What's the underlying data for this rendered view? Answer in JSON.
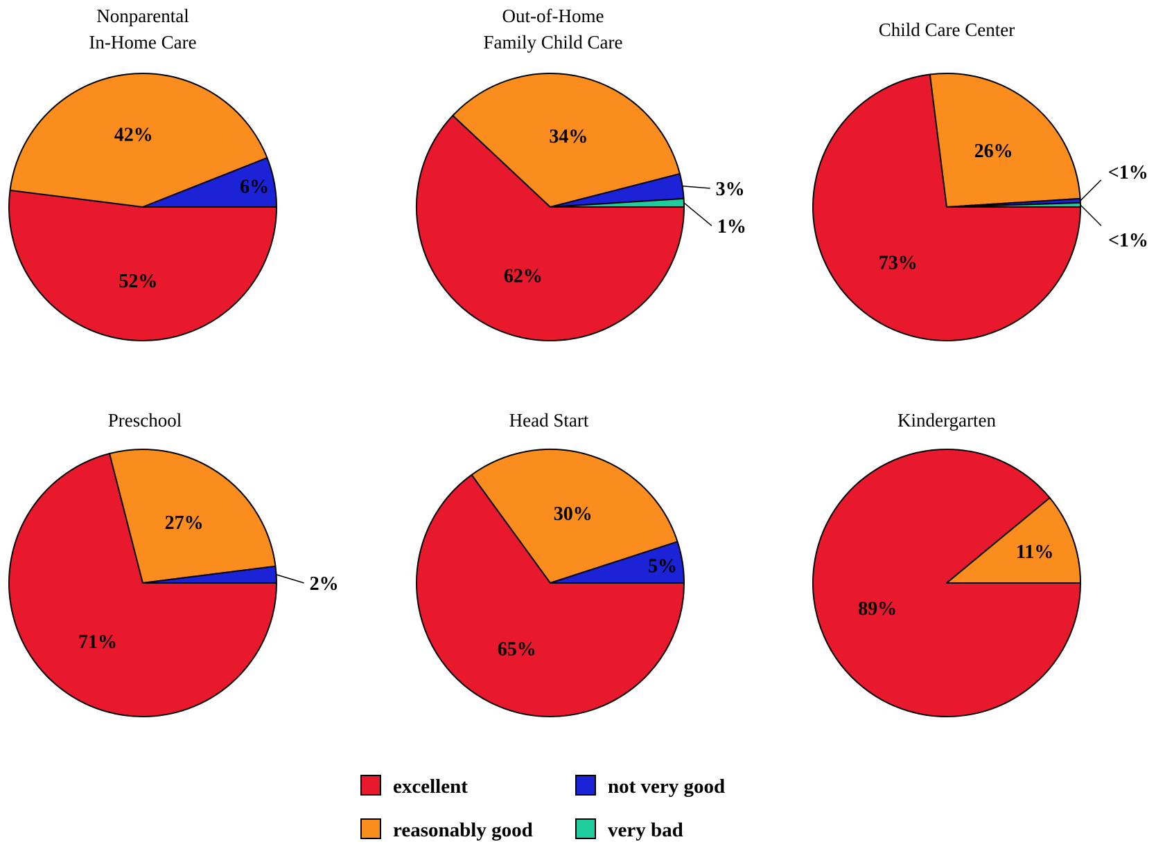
{
  "chart_data": [
    {
      "type": "pie",
      "title": [
        "Nonparental",
        "In-Home Care"
      ],
      "slices": [
        {
          "category": "excellent",
          "value": 52,
          "label": "52%"
        },
        {
          "category": "reasonably good",
          "value": 42,
          "label": "42%"
        },
        {
          "category": "not very good",
          "value": 6,
          "label": "6%"
        }
      ]
    },
    {
      "type": "pie",
      "title": [
        "Out-of-Home",
        "Family Child Care"
      ],
      "slices": [
        {
          "category": "excellent",
          "value": 62,
          "label": "62%"
        },
        {
          "category": "reasonably good",
          "value": 34,
          "label": "34%"
        },
        {
          "category": "not very good",
          "value": 3,
          "label": "3%"
        },
        {
          "category": "very bad",
          "value": 1,
          "label": "1%"
        }
      ]
    },
    {
      "type": "pie",
      "title": [
        "Child Care Center"
      ],
      "slices": [
        {
          "category": "excellent",
          "value": 73,
          "label": "73%"
        },
        {
          "category": "reasonably good",
          "value": 26,
          "label": "26%"
        },
        {
          "category": "not very good",
          "value": 0.5,
          "label": "<1%"
        },
        {
          "category": "very bad",
          "value": 0.5,
          "label": "<1%"
        }
      ]
    },
    {
      "type": "pie",
      "title": [
        "Preschool"
      ],
      "slices": [
        {
          "category": "excellent",
          "value": 71,
          "label": "71%"
        },
        {
          "category": "reasonably good",
          "value": 27,
          "label": "27%"
        },
        {
          "category": "not very good",
          "value": 2,
          "label": "2%"
        }
      ]
    },
    {
      "type": "pie",
      "title": [
        "Head Start"
      ],
      "slices": [
        {
          "category": "excellent",
          "value": 65,
          "label": "65%"
        },
        {
          "category": "reasonably good",
          "value": 30,
          "label": "30%"
        },
        {
          "category": "not very good",
          "value": 5,
          "label": "5%"
        }
      ]
    },
    {
      "type": "pie",
      "title": [
        "Kindergarten"
      ],
      "slices": [
        {
          "category": "excellent",
          "value": 89,
          "label": "89%"
        },
        {
          "category": "reasonably good",
          "value": 11,
          "label": "11%"
        }
      ]
    }
  ],
  "legend": {
    "placement": "bottom-center",
    "items": [
      {
        "category": "excellent",
        "label": "excellent",
        "color": "#e8192c"
      },
      {
        "category": "not very good",
        "label": "not very good",
        "color": "#1c22d6"
      },
      {
        "category": "reasonably good",
        "label": "reasonably good",
        "color": "#fb8c1e"
      },
      {
        "category": "very bad",
        "label": "very bad",
        "color": "#1ecc9c"
      }
    ]
  }
}
